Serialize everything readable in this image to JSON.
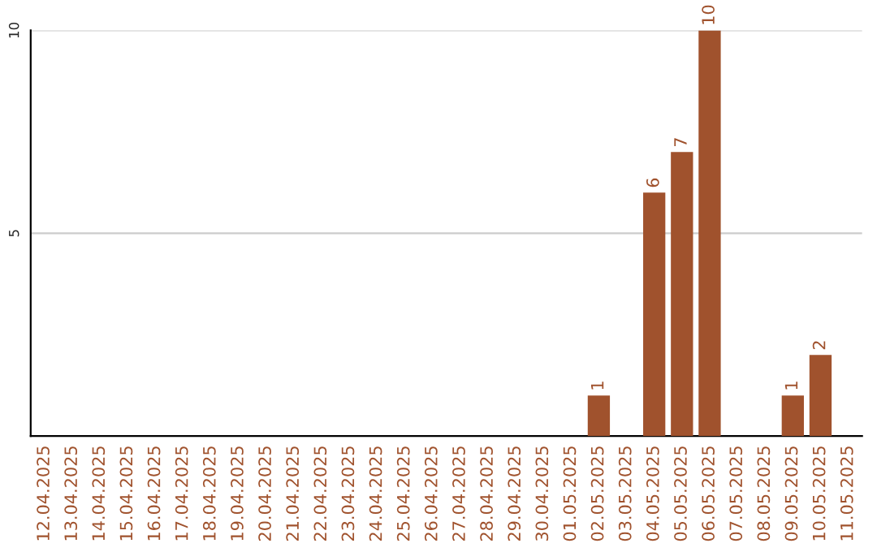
{
  "chart_data": {
    "type": "bar",
    "categories": [
      "12.04.2025",
      "13.04.2025",
      "14.04.2025",
      "15.04.2025",
      "16.04.2025",
      "17.04.2025",
      "18.04.2025",
      "19.04.2025",
      "20.04.2025",
      "21.04.2025",
      "22.04.2025",
      "23.04.2025",
      "24.04.2025",
      "25.04.2025",
      "26.04.2025",
      "27.04.2025",
      "28.04.2025",
      "29.04.2025",
      "30.04.2025",
      "01.05.2025",
      "02.05.2025",
      "03.05.2025",
      "04.05.2025",
      "05.05.2025",
      "06.05.2025",
      "07.05.2025",
      "08.05.2025",
      "09.05.2025",
      "10.05.2025",
      "11.05.2025"
    ],
    "values": [
      0,
      0,
      0,
      0,
      0,
      0,
      0,
      0,
      0,
      0,
      0,
      0,
      0,
      0,
      0,
      0,
      0,
      0,
      0,
      0,
      1,
      0,
      6,
      7,
      10,
      0,
      0,
      1,
      2,
      0
    ],
    "value_labels": [
      null,
      null,
      null,
      null,
      null,
      null,
      null,
      null,
      null,
      null,
      null,
      null,
      null,
      null,
      null,
      null,
      null,
      null,
      null,
      null,
      "1",
      null,
      "6",
      "7",
      "10",
      null,
      null,
      "1",
      "2",
      null
    ],
    "color": "#a0522d",
    "ylim": [
      0,
      10
    ],
    "yticks": [
      5,
      10
    ],
    "grid": "y",
    "legend": false
  }
}
